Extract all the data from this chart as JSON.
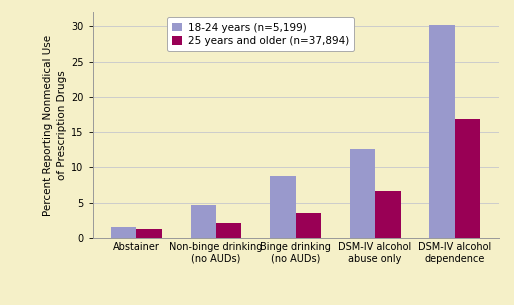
{
  "categories": [
    "Abstainer",
    "Non-binge drinking\n(no AUDs)",
    "Binge drinking\n(no AUDs)",
    "DSM-IV alcohol\nabuse only",
    "DSM-IV alcohol\ndependence"
  ],
  "values_18_24": [
    1.5,
    4.7,
    8.8,
    12.6,
    30.2
  ],
  "values_25_plus": [
    1.3,
    2.1,
    3.5,
    6.7,
    16.8
  ],
  "color_18_24": "#9999cc",
  "color_25_plus": "#990055",
  "legend_18_24": "18-24 years (n=5,199)",
  "legend_25_plus": "25 years and older (n=37,894)",
  "ylabel": "Percent Reporting Nonmedical Use\nof Prescription Drugs",
  "ylim": [
    0,
    32
  ],
  "yticks": [
    0,
    5,
    10,
    15,
    20,
    25,
    30
  ],
  "background_color": "#f5f0c8",
  "bar_width": 0.32,
  "grid_color": "#cccccc",
  "tick_fontsize": 7.0,
  "ylabel_fontsize": 7.5,
  "legend_fontsize": 7.5
}
